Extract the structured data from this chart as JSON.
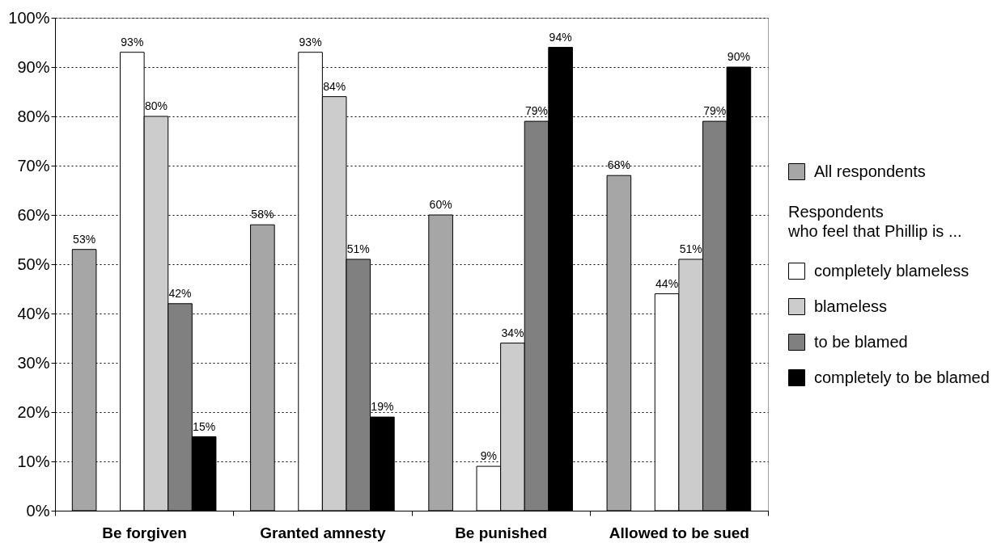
{
  "chart_data": {
    "type": "bar",
    "categories": [
      "Be forgiven",
      "Granted amnesty",
      "Be punished",
      "Allowed to be sued"
    ],
    "series": [
      {
        "name": "All respondents",
        "color": "#a6a6a6",
        "values": [
          53,
          58,
          60,
          68
        ],
        "value_labels": [
          "53%",
          "58%",
          "60%",
          "68%"
        ]
      },
      {
        "name": "completely blameless",
        "color": "#ffffff",
        "values": [
          93,
          93,
          9,
          44
        ],
        "value_labels": [
          "93%",
          "93%",
          "9%",
          "44%"
        ]
      },
      {
        "name": "blameless",
        "color": "#cccccc",
        "values": [
          80,
          84,
          34,
          51
        ],
        "value_labels": [
          "80%",
          "84%",
          "34%",
          "51%"
        ]
      },
      {
        "name": "to be blamed",
        "color": "#808080",
        "values": [
          42,
          51,
          79,
          79
        ],
        "value_labels": [
          "42%",
          "51%",
          "79%",
          "79%"
        ]
      },
      {
        "name": "completely to be blamed",
        "color": "#000000",
        "values": [
          15,
          19,
          94,
          90
        ],
        "value_labels": [
          "15%",
          "19%",
          "94%",
          "90%"
        ]
      }
    ],
    "legend_title": "Respondents\nwho feel that Phillip is ...",
    "ylim": [
      0,
      100
    ],
    "yticks": [
      {
        "value": 0,
        "label": "0%"
      },
      {
        "value": 10,
        "label": "10%"
      },
      {
        "value": 20,
        "label": "20%"
      },
      {
        "value": 30,
        "label": "30%"
      },
      {
        "value": 40,
        "label": "40%"
      },
      {
        "value": 50,
        "label": "50%"
      },
      {
        "value": 60,
        "label": "60%"
      },
      {
        "value": 70,
        "label": "70%"
      },
      {
        "value": 80,
        "label": "80%"
      },
      {
        "value": 90,
        "label": "90%"
      },
      {
        "value": 100,
        "label": "100%"
      }
    ],
    "grid": "y",
    "legend": "right"
  }
}
